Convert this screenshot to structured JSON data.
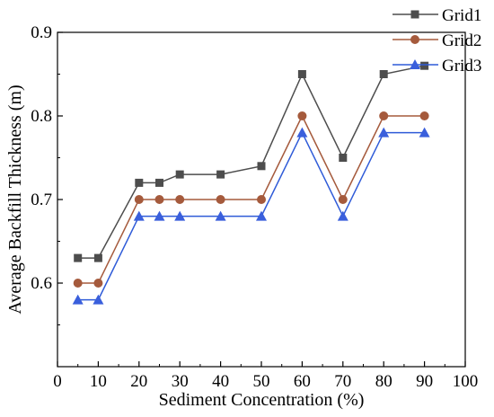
{
  "chart_data": {
    "type": "line",
    "xlabel": "Sediment Concentration (%)",
    "ylabel": "Average Backfill Thickness (m)",
    "xlim": [
      0,
      100
    ],
    "ylim": [
      0.5,
      0.9
    ],
    "xticks": [
      0,
      10,
      20,
      30,
      40,
      50,
      60,
      70,
      80,
      90,
      100
    ],
    "yticks": [
      0.6,
      0.7,
      0.8,
      0.9
    ],
    "xtick_labels": [
      "0",
      "10",
      "20",
      "30",
      "40",
      "50",
      "60",
      "70",
      "80",
      "90",
      "100"
    ],
    "ytick_labels": [
      "0.6",
      "0.7",
      "0.8",
      "0.9"
    ],
    "grid": false,
    "legend_position": "top-right",
    "x": [
      5,
      10,
      20,
      25,
      30,
      40,
      50,
      60,
      70,
      80,
      90
    ],
    "series": [
      {
        "name": "Grid1",
        "marker": "square",
        "color": "#4d4d4d",
        "marker_color": "#4d4d4d",
        "values": [
          0.63,
          0.63,
          0.72,
          0.72,
          0.73,
          0.73,
          0.74,
          0.85,
          0.75,
          0.85,
          0.86
        ]
      },
      {
        "name": "Grid2",
        "marker": "circle",
        "color": "#a55a3c",
        "marker_color": "#a55a3c",
        "values": [
          0.6,
          0.6,
          0.7,
          0.7,
          0.7,
          0.7,
          0.7,
          0.8,
          0.7,
          0.8,
          0.8
        ]
      },
      {
        "name": "Grid3",
        "marker": "triangle",
        "color": "#2f5bd8",
        "marker_color": "#3a5fdc",
        "values": [
          0.58,
          0.58,
          0.68,
          0.68,
          0.68,
          0.68,
          0.68,
          0.78,
          0.68,
          0.78,
          0.78
        ]
      }
    ]
  }
}
